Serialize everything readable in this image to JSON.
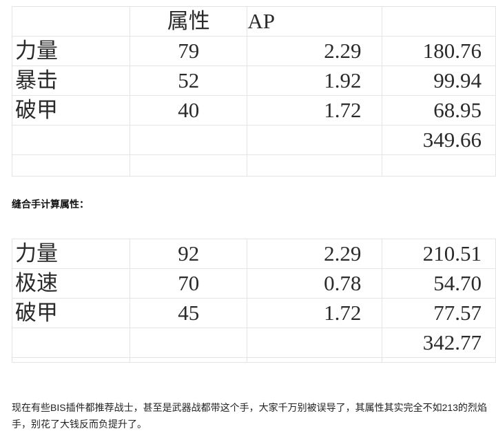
{
  "table1": {
    "header": [
      "",
      "属性",
      "AP",
      ""
    ],
    "rows": [
      [
        "力量",
        "79",
        "2.29",
        "180.76"
      ],
      [
        "暴击",
        "52",
        "1.92",
        "99.94"
      ],
      [
        "破甲",
        "40",
        "1.72",
        "68.95"
      ],
      [
        "",
        "",
        "",
        "349.66"
      ]
    ]
  },
  "heading": "缝合手计算属性：",
  "table2": {
    "rows": [
      [
        "力量",
        "92",
        "2.29",
        "210.51"
      ],
      [
        "极速",
        "70",
        "0.78",
        "54.70"
      ],
      [
        "破甲",
        "45",
        "1.72",
        "77.57"
      ],
      [
        "",
        "",
        "",
        "342.77"
      ]
    ]
  },
  "paragraph": "现在有些BIS插件都推荐战士，甚至是武器战都带这个手，大家千万别被误导了，其属性其实完全不如213的烈焰手，别花了大钱反而负提升了。"
}
